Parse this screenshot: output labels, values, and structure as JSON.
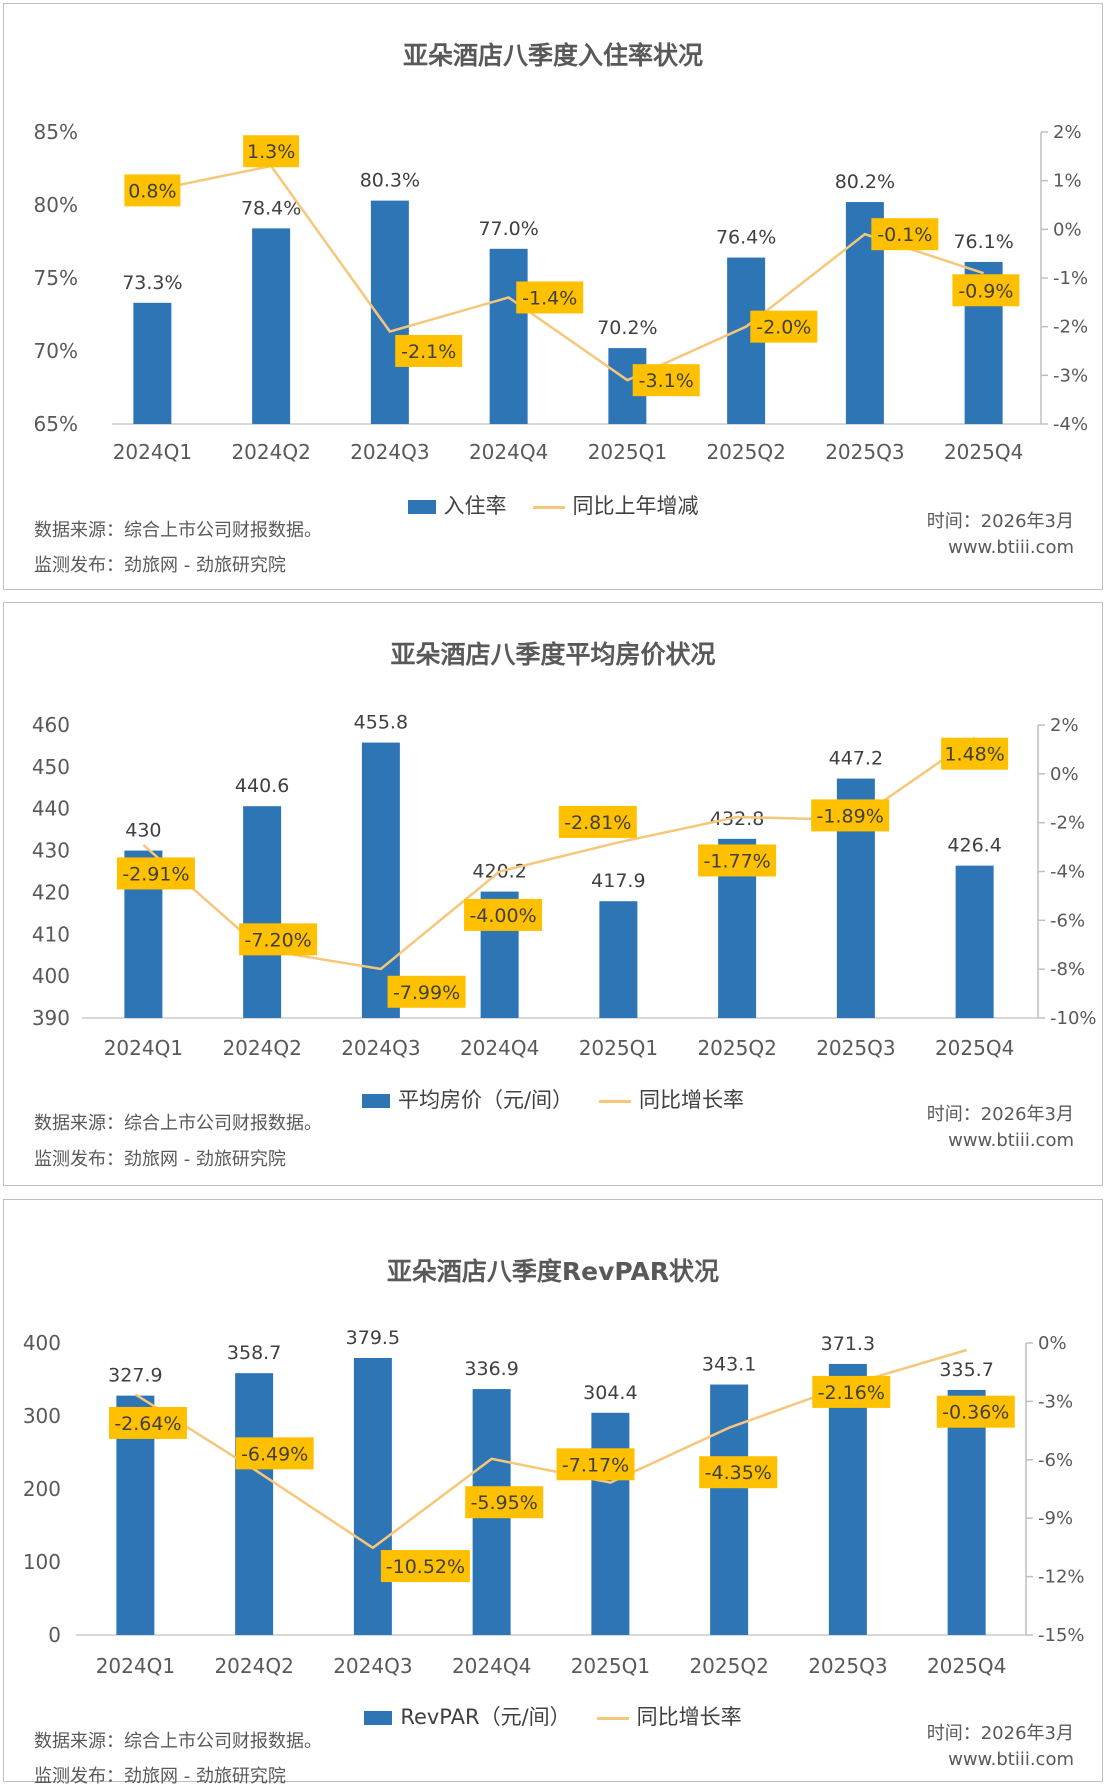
{
  "footer": {
    "source": "数据来源：综合上市公司财报数据。",
    "publisher": "监测发布：劲旅网 - 劲旅研究院",
    "time": "时间：2026年3月",
    "website": "www.btiii.com"
  },
  "colors": {
    "bar": "#2E75B6",
    "line": "#F6C77A",
    "label_box": "#FFC000"
  },
  "chart_data": [
    {
      "type": "bar+line",
      "title": "亚朵酒店八季度入住率状况",
      "categories": [
        "2024Q1",
        "2024Q2",
        "2024Q3",
        "2024Q4",
        "2025Q1",
        "2025Q2",
        "2025Q3",
        "2025Q4"
      ],
      "series": [
        {
          "name": "入住率",
          "type": "bar",
          "axis": "left",
          "values": [
            73.3,
            78.4,
            80.3,
            77.0,
            70.2,
            76.4,
            80.2,
            76.1
          ],
          "labels": [
            "73.3%",
            "78.4%",
            "80.3%",
            "77.0%",
            "70.2%",
            "76.4%",
            "80.2%",
            "76.1%"
          ]
        },
        {
          "name": "同比上年增减",
          "type": "line",
          "axis": "right",
          "values": [
            0.8,
            1.3,
            -2.1,
            -1.4,
            -3.1,
            -2.0,
            -0.1,
            -0.9
          ],
          "labels": [
            "0.8%",
            "1.3%",
            "-2.1%",
            "-1.4%",
            "-3.1%",
            "-2.0%",
            "-0.1%",
            "-0.9%"
          ]
        }
      ],
      "left_axis": {
        "range": [
          65,
          85
        ],
        "ticks": [
          "65%",
          "70%",
          "75%",
          "80%",
          "85%"
        ],
        "tick_values": [
          65,
          70,
          75,
          80,
          85
        ]
      },
      "right_axis": {
        "range": [
          -4,
          2
        ],
        "ticks": [
          "-4%",
          "-3%",
          "-2%",
          "-1%",
          "0%",
          "1%",
          "2%"
        ],
        "tick_values": [
          -4,
          -3,
          -2,
          -1,
          0,
          1,
          2
        ]
      },
      "legend": "bottom"
    },
    {
      "type": "bar+line",
      "title": "亚朵酒店八季度平均房价状况",
      "categories": [
        "2024Q1",
        "2024Q2",
        "2024Q3",
        "2024Q4",
        "2025Q1",
        "2025Q2",
        "2025Q3",
        "2025Q4"
      ],
      "series": [
        {
          "name": "平均房价（元/间）",
          "type": "bar",
          "axis": "left",
          "values": [
            430,
            440.6,
            455.8,
            420.2,
            417.9,
            432.8,
            447.2,
            426.4
          ],
          "labels": [
            "430",
            "440.6",
            "455.8",
            "420.2",
            "417.9",
            "432.8",
            "447.2",
            "426.4"
          ]
        },
        {
          "name": "同比增长率",
          "type": "line",
          "axis": "right",
          "values": [
            -2.91,
            -7.2,
            -7.99,
            -4.0,
            -2.81,
            -1.77,
            -1.89,
            1.48
          ],
          "labels": [
            "-2.91%",
            "-7.20%",
            "-7.99%",
            "-4.00%",
            "-2.81%",
            "-1.77%",
            "-1.89%",
            "1.48%"
          ]
        }
      ],
      "left_axis": {
        "range": [
          390,
          460
        ],
        "ticks": [
          "390",
          "400",
          "410",
          "420",
          "430",
          "440",
          "450",
          "460"
        ],
        "tick_values": [
          390,
          400,
          410,
          420,
          430,
          440,
          450,
          460
        ]
      },
      "right_axis": {
        "range": [
          -10,
          2
        ],
        "ticks": [
          "-10%",
          "-8%",
          "-6%",
          "-4%",
          "-2%",
          "0%",
          "2%"
        ],
        "tick_values": [
          -10,
          -8,
          -6,
          -4,
          -2,
          0,
          2
        ]
      },
      "legend": "bottom"
    },
    {
      "type": "bar+line",
      "title": "亚朵酒店八季度RevPAR状况",
      "categories": [
        "2024Q1",
        "2024Q2",
        "2024Q3",
        "2024Q4",
        "2025Q1",
        "2025Q2",
        "2025Q3",
        "2025Q4"
      ],
      "series": [
        {
          "name": "RevPAR（元/间）",
          "type": "bar",
          "axis": "left",
          "values": [
            327.9,
            358.7,
            379.5,
            336.9,
            304.4,
            343.1,
            371.3,
            335.7
          ],
          "labels": [
            "327.9",
            "358.7",
            "379.5",
            "336.9",
            "304.4",
            "343.1",
            "371.3",
            "335.7"
          ]
        },
        {
          "name": "同比增长率",
          "type": "line",
          "axis": "right",
          "values": [
            -2.64,
            -6.49,
            -10.52,
            -5.95,
            -7.17,
            -4.35,
            -2.16,
            -0.36
          ],
          "labels": [
            "-2.64%",
            "-6.49%",
            "-10.52%",
            "-5.95%",
            "-7.17%",
            "-4.35%",
            "-2.16%",
            "-0.36%"
          ]
        }
      ],
      "left_axis": {
        "range": [
          0,
          400
        ],
        "ticks": [
          "0",
          "100",
          "200",
          "300",
          "400"
        ],
        "tick_values": [
          0,
          100,
          200,
          300,
          400
        ]
      },
      "right_axis": {
        "range": [
          -15,
          0
        ],
        "ticks": [
          "-15%",
          "-12%",
          "-9%",
          "-6%",
          "-3%",
          "0%"
        ],
        "tick_values": [
          -15,
          -12,
          -9,
          -6,
          -3,
          0
        ]
      },
      "legend": "bottom"
    }
  ]
}
